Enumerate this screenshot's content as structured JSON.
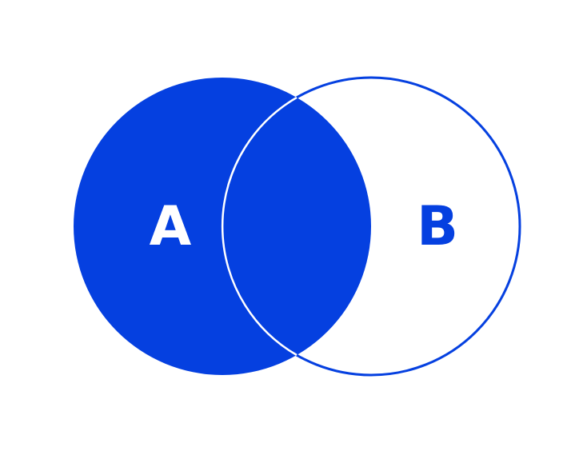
{
  "diagram": {
    "type": "venn",
    "sets": [
      {
        "label": "A",
        "style": "filled",
        "label_color": "#ffffff"
      },
      {
        "label": "B",
        "style": "outline",
        "label_color": "#0540E0"
      }
    ],
    "highlighted_region": "A",
    "colors": {
      "fill": "#0540E0",
      "outline": "#0540E0",
      "intersection_edge": "#ffffff",
      "background": "#ffffff"
    }
  }
}
